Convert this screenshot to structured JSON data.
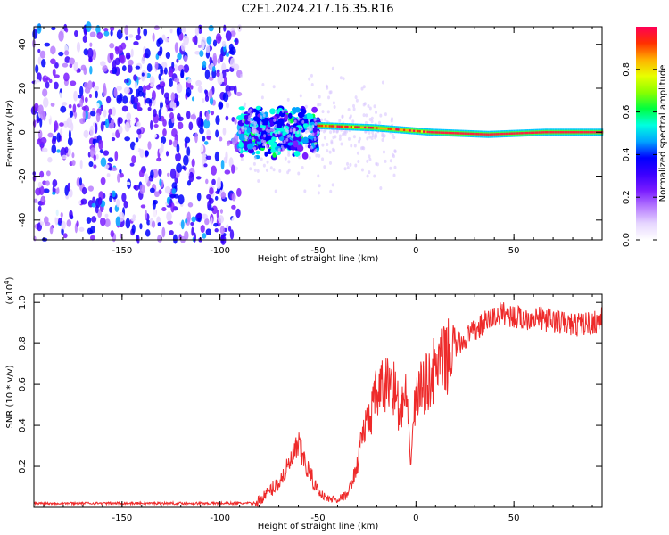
{
  "title": "C2E1.2024.217.16.35.R16",
  "colors": {
    "line": "#ee2a2a",
    "bg": "#ffffff",
    "colormap": [
      "#ffffff",
      "#e6d6ff",
      "#b77cff",
      "#7a1cff",
      "#3a00ff",
      "#0000ff",
      "#00a4ff",
      "#00ffe0",
      "#00ff40",
      "#8aff00",
      "#e8ff00",
      "#ffb000",
      "#ff3000",
      "#ff0055"
    ]
  },
  "chart_data": [
    {
      "type": "heatmap",
      "title": "",
      "xlabel": "Height of straight line (km)",
      "ylabel": "Frequency (Hz)",
      "xlim": [
        -195,
        95
      ],
      "ylim": [
        -49,
        48
      ],
      "xticks": [
        -150,
        -100,
        -50,
        0,
        50
      ],
      "yticks": [
        -40,
        -20,
        0,
        20,
        40
      ],
      "colorbar": {
        "label": "Normalized spectral amplitude",
        "ticks": [
          "0.0",
          "0.2",
          "0.4",
          "0.6",
          "0.8"
        ],
        "range": [
          0,
          1
        ]
      },
      "regions": [
        {
          "name": "noise",
          "x": [
            -195,
            -90
          ],
          "freq": [
            -49,
            48
          ],
          "amplitude": 0.12
        },
        {
          "name": "scatter",
          "x": [
            -90,
            -50
          ],
          "freq": [
            -12,
            12
          ],
          "amplitude": 0.35
        },
        {
          "name": "ridge",
          "x": [
            -50,
            95
          ],
          "freq_center": [
            3,
            2,
            0,
            -1,
            0,
            0
          ],
          "amplitude": 0.9
        }
      ]
    },
    {
      "type": "line",
      "title": "",
      "xlabel": "Height of straight line (km)",
      "ylabel": "SNR (10 * v/v)",
      "scale_label": "(x10",
      "scale_exp": "4",
      "scale_close": ")",
      "xlim": [
        -195,
        95
      ],
      "ylim": [
        0,
        1.04
      ],
      "xticks": [
        -150,
        -100,
        -50,
        0,
        50
      ],
      "yticks": [
        "0.2",
        "0.4",
        "0.6",
        "0.8",
        "1.0"
      ],
      "series": [
        {
          "x": [
            -195,
            -150,
            -100,
            -82,
            -78,
            -70,
            -65,
            -60,
            -55,
            -50,
            -45,
            -40,
            -35,
            -30,
            -28,
            -25,
            -20,
            -15,
            -12,
            -8,
            -5,
            -3,
            0,
            5,
            10,
            15,
            20,
            25,
            30,
            35,
            40,
            45,
            50,
            55,
            60,
            70,
            80,
            90,
            95
          ],
          "y": [
            0.02,
            0.02,
            0.02,
            0.02,
            0.05,
            0.12,
            0.2,
            0.3,
            0.18,
            0.08,
            0.04,
            0.04,
            0.06,
            0.2,
            0.35,
            0.4,
            0.55,
            0.6,
            0.62,
            0.45,
            0.55,
            0.22,
            0.55,
            0.6,
            0.68,
            0.72,
            0.78,
            0.82,
            0.86,
            0.9,
            0.93,
            0.95,
            0.93,
            0.92,
            0.93,
            0.91,
            0.89,
            0.9,
            0.92
          ]
        }
      ]
    }
  ]
}
